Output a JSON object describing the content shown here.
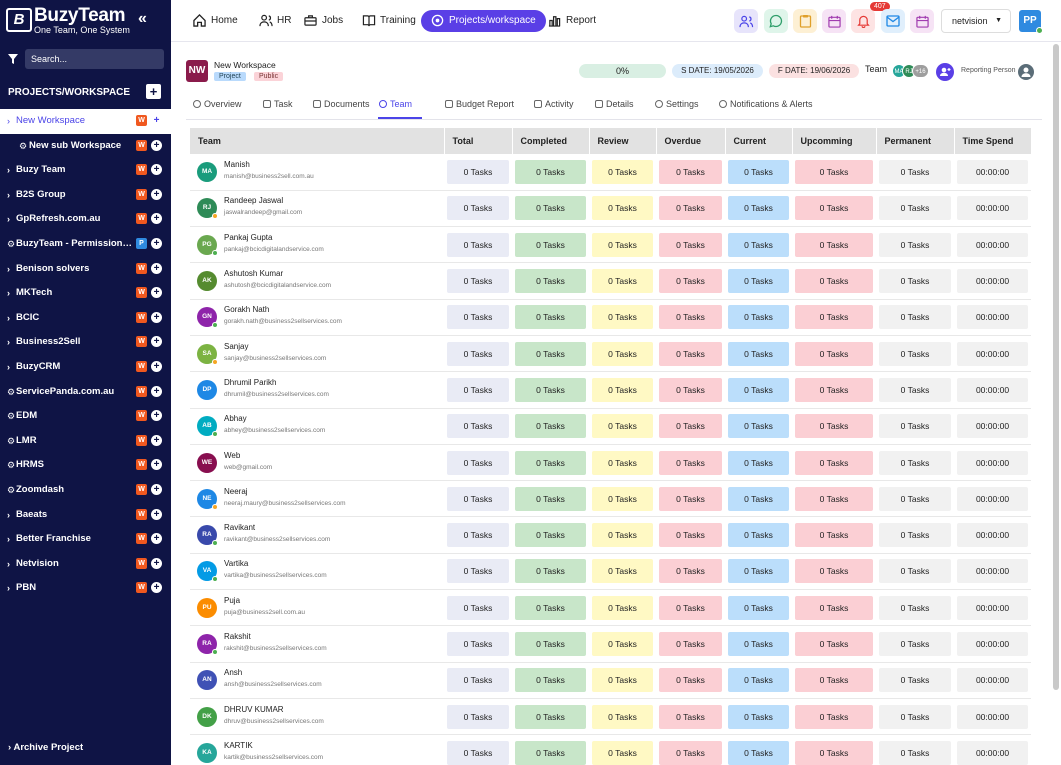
{
  "brand": {
    "mark": "B",
    "name": "BuzyTeam",
    "tagline": "One Team, One System"
  },
  "sidebar": {
    "search_placeholder": "Search...",
    "section_title": "PROJECTS/WORKSPACE",
    "add": "+",
    "items": [
      {
        "label": "New Workspace",
        "badge": "W",
        "active": true,
        "sub": false,
        "icon": "chevron"
      },
      {
        "label": "New sub Workspace",
        "badge": "W",
        "sub": true,
        "icon": "gear"
      },
      {
        "label": "Buzy Team",
        "badge": "W",
        "icon": "chevron"
      },
      {
        "label": "B2S Group",
        "badge": "W",
        "icon": "chevron"
      },
      {
        "label": "GpRefresh.com.au",
        "badge": "W",
        "icon": "chevron"
      },
      {
        "label": "BuzyTeam - Permission & S...",
        "badge": "P",
        "icon": "gear"
      },
      {
        "label": "Benison solvers",
        "badge": "W",
        "icon": "chevron"
      },
      {
        "label": "MKTech",
        "badge": "W",
        "icon": "chevron"
      },
      {
        "label": "BCIC",
        "badge": "W",
        "icon": "chevron"
      },
      {
        "label": "Business2Sell",
        "badge": "W",
        "icon": "chevron"
      },
      {
        "label": "BuzyCRM",
        "badge": "W",
        "icon": "chevron"
      },
      {
        "label": "ServicePanda.com.au",
        "badge": "W",
        "icon": "gear"
      },
      {
        "label": "EDM",
        "badge": "W",
        "icon": "gear"
      },
      {
        "label": "LMR",
        "badge": "W",
        "icon": "gear"
      },
      {
        "label": "HRMS",
        "badge": "W",
        "icon": "gear"
      },
      {
        "label": "Zoomdash",
        "badge": "W",
        "icon": "gear"
      },
      {
        "label": "Baeats",
        "badge": "W",
        "icon": "chevron"
      },
      {
        "label": "Better Franchise",
        "badge": "W",
        "icon": "chevron"
      },
      {
        "label": "Netvision",
        "badge": "W",
        "icon": "chevron"
      },
      {
        "label": "PBN",
        "badge": "W",
        "icon": "chevron"
      }
    ],
    "archive": "Archive Project"
  },
  "topnav": {
    "items": [
      "Home",
      "HR",
      "Jobs",
      "Training",
      "Projects/workspace",
      "Report"
    ],
    "active": "Projects/workspace",
    "notifications": "407",
    "workspace": "netvision",
    "user_initials": "PP"
  },
  "project": {
    "initials": "NW",
    "name": "New Workspace",
    "tags": [
      "Project",
      "Public"
    ],
    "progress": "0%",
    "start": "S DATE: 19/05/2026",
    "finish": "F DATE: 19/06/2026",
    "team_label": "Team",
    "team_more": "+16",
    "reporting_label": "Reporting Person"
  },
  "tabs": [
    "Overview",
    "Task",
    "Documents",
    "Team",
    "Budget Report",
    "Activity",
    "Details",
    "Settings",
    "Notifications & Alerts"
  ],
  "active_tab": "Team",
  "table": {
    "headers": [
      "Team",
      "Total",
      "Completed",
      "Review",
      "Overdue",
      "Current",
      "Upcomming",
      "Permanent",
      "Time Spend"
    ],
    "cell_value": "0 Tasks",
    "time_value": "00:00:00",
    "members": [
      {
        "initials": "MA",
        "name": "Manish",
        "email": "manish@business2sell.com.au",
        "color": "#1a9c7c",
        "status": ""
      },
      {
        "initials": "RJ",
        "name": "Randeep Jaswal",
        "email": "jaswalrandeep@gmail.com",
        "color": "#2e8b57",
        "status": "#f5a623"
      },
      {
        "initials": "PG",
        "name": "Pankaj Gupta",
        "email": "pankaj@bcicdigitalandservice.com",
        "color": "#6aa84f",
        "status": "#4caf50"
      },
      {
        "initials": "AK",
        "name": "Ashutosh Kumar",
        "email": "ashutosh@bcicdigitalandservice.com",
        "color": "#558b2f",
        "status": ""
      },
      {
        "initials": "GN",
        "name": "Gorakh Nath",
        "email": "gorakh.nath@business2sellservices.com",
        "color": "#8e24aa",
        "status": "#4caf50"
      },
      {
        "initials": "SA",
        "name": "Sanjay",
        "email": "sanjay@business2sellservices.com",
        "color": "#7cb342",
        "status": "#f5a623"
      },
      {
        "initials": "DP",
        "name": "Dhrumil Parikh",
        "email": "dhrumil@business2sellservices.com",
        "color": "#1e88e5",
        "status": ""
      },
      {
        "initials": "AB",
        "name": "Abhay",
        "email": "abhey@business2sellservices.com",
        "color": "#00acc1",
        "status": "#4caf50"
      },
      {
        "initials": "WE",
        "name": "Web",
        "email": "web@gmail.com",
        "color": "#880e4f",
        "status": ""
      },
      {
        "initials": "NE",
        "name": "Neeraj",
        "email": "neeraj.maury@business2sellservices.com",
        "color": "#1e88e5",
        "status": "#f5a623"
      },
      {
        "initials": "RA",
        "name": "Ravikant",
        "email": "ravikant@business2sellservices.com",
        "color": "#3949ab",
        "status": "#4caf50"
      },
      {
        "initials": "VA",
        "name": "Vartika",
        "email": "vartika@business2sellservices.com",
        "color": "#039be5",
        "status": "#4caf50"
      },
      {
        "initials": "PU",
        "name": "Puja",
        "email": "puja@business2sell.com.au",
        "color": "#fb8c00",
        "status": ""
      },
      {
        "initials": "RA",
        "name": "Rakshit",
        "email": "rakshit@business2sellservices.com",
        "color": "#8e24aa",
        "status": "#4caf50"
      },
      {
        "initials": "AN",
        "name": "Ansh",
        "email": "ansh@business2sellservices.com",
        "color": "#3f51b5",
        "status": ""
      },
      {
        "initials": "DK",
        "name": "DHRUV KUMAR",
        "email": "dhruv@business2sellservices.com",
        "color": "#43a047",
        "status": ""
      },
      {
        "initials": "KA",
        "name": "KARTIK",
        "email": "kartik@business2sellservices.com",
        "color": "#26a69a",
        "status": ""
      }
    ]
  }
}
